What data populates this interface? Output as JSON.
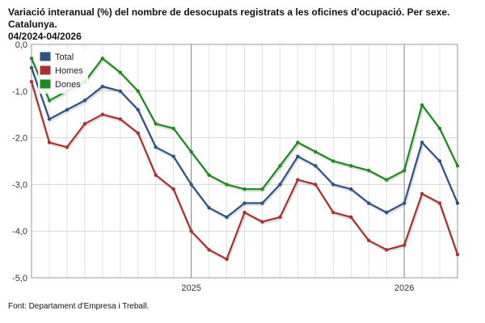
{
  "header": {
    "title_line1": "Variació interanual (%) del nombre de desocupats registrats a les oficines d'ocupació. Per sexe. Catalunya.",
    "title_line2": "04/2024-04/2026"
  },
  "footer": {
    "source": "Font: Departament d'Empresa i Treball."
  },
  "chart_data": {
    "type": "line",
    "x": [
      "2024-04",
      "2024-05",
      "2024-06",
      "2024-07",
      "2024-08",
      "2024-09",
      "2024-10",
      "2024-11",
      "2024-12",
      "2025-01",
      "2025-02",
      "2025-03",
      "2025-04",
      "2025-05",
      "2025-06",
      "2025-07",
      "2025-08",
      "2025-09",
      "2025-10",
      "2025-11",
      "2025-12",
      "2026-01",
      "2026-02",
      "2026-03",
      "2026-04"
    ],
    "x_tick_labels": [
      {
        "x": "2025-01",
        "label": "2025"
      },
      {
        "x": "2026-01",
        "label": "2026"
      }
    ],
    "ylim": [
      -5,
      0
    ],
    "y_ticks": [
      0,
      -1,
      -2,
      -3,
      -4,
      -5
    ],
    "y_tick_labels": [
      "0,0",
      "-1,0",
      "-2,0",
      "-3,0",
      "-4,0",
      "-5,0"
    ],
    "grid": true,
    "legend_position": "top-left",
    "series": [
      {
        "name": "Total",
        "color": "#2e5283",
        "values": [
          -0.5,
          -1.6,
          -1.4,
          -1.2,
          -0.9,
          -1.0,
          -1.4,
          -2.2,
          -2.4,
          -3.0,
          -3.5,
          -3.7,
          -3.4,
          -3.4,
          -3.0,
          -2.4,
          -2.6,
          -3.0,
          -3.1,
          -3.4,
          -3.6,
          -3.4,
          -2.1,
          -2.5,
          -3.4
        ]
      },
      {
        "name": "Homes",
        "color": "#a83232",
        "values": [
          -0.8,
          -2.1,
          -2.2,
          -1.7,
          -1.5,
          -1.6,
          -1.9,
          -2.8,
          -3.1,
          -4.0,
          -4.4,
          -4.6,
          -3.6,
          -3.8,
          -3.7,
          -2.9,
          -3.0,
          -3.6,
          -3.7,
          -4.2,
          -4.4,
          -4.3,
          -3.2,
          -3.4,
          -4.5
        ]
      },
      {
        "name": "Dones",
        "color": "#1e8a1e",
        "values": [
          -0.3,
          -1.2,
          -1.0,
          -0.8,
          -0.3,
          -0.6,
          -1.0,
          -1.7,
          -1.8,
          -2.3,
          -2.8,
          -3.0,
          -3.1,
          -3.1,
          -2.6,
          -2.1,
          -2.3,
          -2.5,
          -2.6,
          -2.7,
          -2.9,
          -2.7,
          -1.3,
          -1.8,
          -2.6
        ]
      }
    ]
  }
}
